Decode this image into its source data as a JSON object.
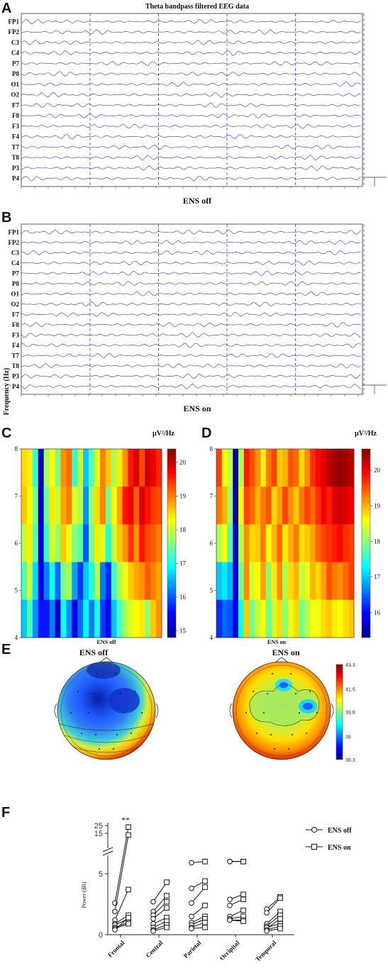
{
  "panels": {
    "A": {
      "letter": "A",
      "title": "Theta bandpass filtered EEG data",
      "caption": "ENS off"
    },
    "B": {
      "letter": "B",
      "caption": "ENS on"
    },
    "C": {
      "letter": "C",
      "unit": "µV²/Hz",
      "ylabel": "Frequency (Hz)",
      "caption": "ENS off"
    },
    "D": {
      "letter": "D",
      "unit": "µV²/Hz",
      "caption": "ENS on"
    },
    "E": {
      "letter": "E",
      "title_off": "ENS off",
      "title_on": "ENS on"
    },
    "F": {
      "letter": "F",
      "significance": "**"
    }
  },
  "colors": {
    "eeg_trace": "#2a3a9a",
    "event_line": "#3b3bd6",
    "axis": "#222222"
  },
  "chart_data": [
    {
      "panel": "A",
      "type": "line",
      "title": "Theta bandpass filtered EEG data",
      "caption": "ENS off",
      "channels": [
        "FP1",
        "FP2",
        "C3",
        "C4",
        "P7",
        "P8",
        "O1",
        "O2",
        "F7",
        "F8",
        "F3",
        "F4",
        "T7",
        "T8",
        "P3",
        "P4"
      ],
      "event_markers": 5
    },
    {
      "panel": "B",
      "type": "line",
      "caption": "ENS on",
      "channels": [
        "FP1",
        "FP2",
        "C3",
        "C4",
        "P7",
        "P8",
        "O1",
        "O2",
        "F7",
        "F8",
        "F3",
        "F4",
        "T7",
        "T8",
        "P3",
        "P4"
      ],
      "event_markers": 5
    },
    {
      "panel": "C",
      "type": "heatmap",
      "caption": "ENS off",
      "ylabel": "Frequency (Hz)",
      "yticks": [
        4,
        5,
        6,
        7,
        8
      ],
      "colorbar": {
        "label": "µV²/Hz",
        "ticks": [
          15,
          16,
          17,
          18,
          19,
          20
        ],
        "range": [
          14.8,
          20.4
        ]
      },
      "colormap": "jet",
      "rows": [
        [
          18.5,
          18.4,
          17.2,
          15.0,
          17.8,
          18.3,
          17.6,
          18.9,
          19.1,
          17.2,
          18.0,
          16.6,
          17.4,
          18.2,
          19.0,
          18.6,
          17.8,
          18.4,
          18.9,
          19.6,
          19.9,
          19.3,
          20.0,
          19.8,
          19.5
        ],
        [
          18.6,
          18.3,
          17.6,
          15.1,
          17.5,
          18.4,
          18.0,
          18.8,
          19.0,
          18.1,
          17.9,
          16.3,
          17.8,
          18.5,
          19.0,
          17.5,
          18.3,
          18.8,
          19.6,
          19.8,
          19.2,
          19.9,
          19.6,
          19.4,
          19.3
        ],
        [
          17.9,
          18.4,
          17.4,
          15.2,
          17.2,
          18.1,
          17.7,
          18.6,
          18.2,
          17.6,
          17.4,
          16.0,
          17.6,
          18.4,
          18.1,
          17.1,
          18.0,
          18.6,
          18.9,
          19.4,
          18.9,
          19.6,
          19.3,
          19.2,
          19.0
        ],
        [
          17.3,
          18.0,
          16.7,
          15.3,
          16.2,
          17.0,
          16.1,
          17.6,
          17.8,
          16.4,
          15.8,
          16.6,
          17.1,
          17.9,
          16.2,
          15.7,
          17.2,
          17.9,
          18.2,
          18.6,
          18.8,
          18.9,
          19.2,
          19.0,
          18.8
        ],
        [
          16.6,
          17.3,
          16.3,
          15.6,
          15.6,
          16.2,
          15.1,
          17.0,
          16.3,
          15.4,
          16.1,
          16.9,
          16.2,
          17.0,
          15.8,
          15.5,
          16.6,
          17.3,
          17.8,
          18.1,
          18.3,
          18.4,
          17.7,
          18.6,
          18.9
        ]
      ]
    },
    {
      "panel": "D",
      "type": "heatmap",
      "caption": "ENS on",
      "yticks": [
        4,
        5,
        6,
        7,
        8
      ],
      "colorbar": {
        "label": "µV²/Hz",
        "ticks": [
          16,
          17,
          18,
          19,
          20
        ],
        "range": [
          15.3,
          20.6
        ]
      },
      "colormap": "jet",
      "rows": [
        [
          19.6,
          18.6,
          18.3,
          15.4,
          18.2,
          19.8,
          19.5,
          19.2,
          18.7,
          19.3,
          19.6,
          18.9,
          19.0,
          19.5,
          19.4,
          18.8,
          19.2,
          19.7,
          19.9,
          20.1,
          20.3,
          20.4,
          20.5,
          20.4,
          20.3
        ],
        [
          19.3,
          19.0,
          18.1,
          15.5,
          18.6,
          19.6,
          19.4,
          19.0,
          19.3,
          19.5,
          18.8,
          19.1,
          19.6,
          19.2,
          18.9,
          19.3,
          19.6,
          19.4,
          19.7,
          20.0,
          19.8,
          20.1,
          20.2,
          20.1,
          20.0
        ],
        [
          18.2,
          18.6,
          17.7,
          15.6,
          18.2,
          19.2,
          18.8,
          18.9,
          19.3,
          18.6,
          19.0,
          19.4,
          18.7,
          19.0,
          19.3,
          18.8,
          18.9,
          19.1,
          19.4,
          19.6,
          19.7,
          19.8,
          19.9,
          19.7,
          19.6
        ],
        [
          17.0,
          17.2,
          16.9,
          15.7,
          17.9,
          19.2,
          18.4,
          18.6,
          19.1,
          18.0,
          18.7,
          19.2,
          18.2,
          18.8,
          19.0,
          18.3,
          18.5,
          19.0,
          18.8,
          19.1,
          19.5,
          19.3,
          19.2,
          19.4,
          19.6
        ],
        [
          16.2,
          16.5,
          16.4,
          15.8,
          17.4,
          18.9,
          17.9,
          18.3,
          18.6,
          17.8,
          18.4,
          18.8,
          18.0,
          18.5,
          18.8,
          17.9,
          18.2,
          18.6,
          18.5,
          18.8,
          18.9,
          18.7,
          18.6,
          18.8,
          18.9
        ]
      ]
    },
    {
      "panel": "E",
      "type": "heatmap",
      "subtype": "topographic map",
      "titles": [
        "ENS off",
        "ENS on"
      ],
      "colorbar": {
        "ticks": [
          43.3,
          41.5,
          39.8,
          38,
          36.3
        ],
        "range": [
          36.3,
          43.3
        ]
      }
    },
    {
      "panel": "F",
      "type": "scatter",
      "subtype": "paired line plot",
      "ylabel": "Power (dB)",
      "yticks_lower": [
        0,
        5
      ],
      "yticks_upper": [
        15,
        25
      ],
      "categories": [
        "Frontal",
        "Central",
        "Parietal",
        "Occipital",
        "Temporal"
      ],
      "legend": [
        "ENS off",
        "ENS on"
      ],
      "legend_placement": "right",
      "annotation": {
        "category": "Frontal",
        "text": "**"
      },
      "groups": [
        {
          "category": "Frontal",
          "pairs": [
            [
              2.6,
              23
            ],
            [
              1.9,
              11
            ],
            [
              1.2,
              3.7
            ],
            [
              0.9,
              1.6
            ],
            [
              0.8,
              1.3
            ],
            [
              0.6,
              1.0
            ],
            [
              0.5,
              0.9
            ],
            [
              0.4,
              1.4
            ]
          ]
        },
        {
          "category": "Central",
          "pairs": [
            [
              2.7,
              4.3
            ],
            [
              1.9,
              3.2
            ],
            [
              1.6,
              2.7
            ],
            [
              1.3,
              2.2
            ],
            [
              0.9,
              1.4
            ],
            [
              0.6,
              1.1
            ],
            [
              0.4,
              0.8
            ],
            [
              0.3,
              0.6
            ]
          ]
        },
        {
          "category": "Parietal",
          "pairs": [
            [
              5.9,
              6.0
            ],
            [
              3.8,
              4.4
            ],
            [
              2.6,
              3.9
            ],
            [
              1.5,
              2.4
            ],
            [
              1.0,
              1.5
            ],
            [
              0.8,
              1.3
            ],
            [
              0.6,
              1.0
            ],
            [
              0.5,
              0.6
            ]
          ]
        },
        {
          "category": "Occipital",
          "pairs": [
            [
              6.0,
              6.0
            ],
            [
              6.0,
              6.0
            ],
            [
              2.9,
              3.3
            ],
            [
              2.4,
              2.9
            ],
            [
              1.5,
              2.0
            ],
            [
              1.3,
              1.5
            ],
            [
              1.2,
              1.2
            ],
            [
              1.2,
              1.1
            ]
          ]
        },
        {
          "category": "Temporal",
          "pairs": [
            [
              2.1,
              3.1
            ],
            [
              1.8,
              3.0
            ],
            [
              0.9,
              1.9
            ],
            [
              0.7,
              1.6
            ],
            [
              0.5,
              1.3
            ],
            [
              0.6,
              0.9
            ],
            [
              0.4,
              0.7
            ],
            [
              0.3,
              0.5
            ]
          ]
        }
      ]
    }
  ]
}
